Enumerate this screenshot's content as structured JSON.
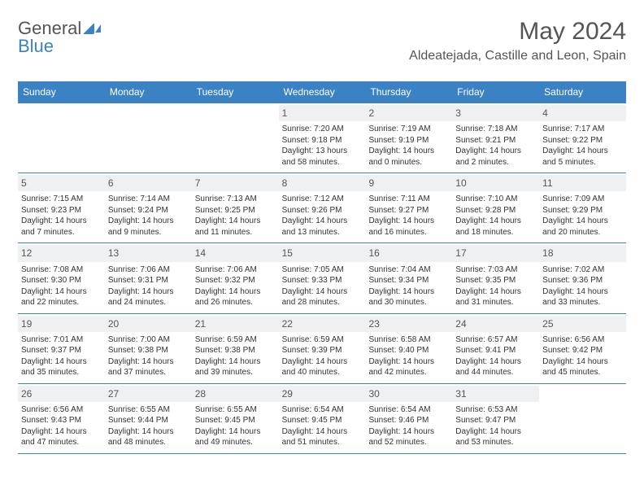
{
  "brand": {
    "part1": "General",
    "part2": "Blue"
  },
  "title": "May 2024",
  "location": "Aldeatejada, Castille and Leon, Spain",
  "colors": {
    "accent": "#3b82c4",
    "daynum_bg": "#eef0f2"
  },
  "daysOfWeek": [
    "Sunday",
    "Monday",
    "Tuesday",
    "Wednesday",
    "Thursday",
    "Friday",
    "Saturday"
  ],
  "weeks": [
    [
      null,
      null,
      null,
      {
        "num": "1",
        "sunrise": "Sunrise: 7:20 AM",
        "sunset": "Sunset: 9:18 PM",
        "daylight": "Daylight: 13 hours and 58 minutes."
      },
      {
        "num": "2",
        "sunrise": "Sunrise: 7:19 AM",
        "sunset": "Sunset: 9:19 PM",
        "daylight": "Daylight: 14 hours and 0 minutes."
      },
      {
        "num": "3",
        "sunrise": "Sunrise: 7:18 AM",
        "sunset": "Sunset: 9:21 PM",
        "daylight": "Daylight: 14 hours and 2 minutes."
      },
      {
        "num": "4",
        "sunrise": "Sunrise: 7:17 AM",
        "sunset": "Sunset: 9:22 PM",
        "daylight": "Daylight: 14 hours and 5 minutes."
      }
    ],
    [
      {
        "num": "5",
        "sunrise": "Sunrise: 7:15 AM",
        "sunset": "Sunset: 9:23 PM",
        "daylight": "Daylight: 14 hours and 7 minutes."
      },
      {
        "num": "6",
        "sunrise": "Sunrise: 7:14 AM",
        "sunset": "Sunset: 9:24 PM",
        "daylight": "Daylight: 14 hours and 9 minutes."
      },
      {
        "num": "7",
        "sunrise": "Sunrise: 7:13 AM",
        "sunset": "Sunset: 9:25 PM",
        "daylight": "Daylight: 14 hours and 11 minutes."
      },
      {
        "num": "8",
        "sunrise": "Sunrise: 7:12 AM",
        "sunset": "Sunset: 9:26 PM",
        "daylight": "Daylight: 14 hours and 13 minutes."
      },
      {
        "num": "9",
        "sunrise": "Sunrise: 7:11 AM",
        "sunset": "Sunset: 9:27 PM",
        "daylight": "Daylight: 14 hours and 16 minutes."
      },
      {
        "num": "10",
        "sunrise": "Sunrise: 7:10 AM",
        "sunset": "Sunset: 9:28 PM",
        "daylight": "Daylight: 14 hours and 18 minutes."
      },
      {
        "num": "11",
        "sunrise": "Sunrise: 7:09 AM",
        "sunset": "Sunset: 9:29 PM",
        "daylight": "Daylight: 14 hours and 20 minutes."
      }
    ],
    [
      {
        "num": "12",
        "sunrise": "Sunrise: 7:08 AM",
        "sunset": "Sunset: 9:30 PM",
        "daylight": "Daylight: 14 hours and 22 minutes."
      },
      {
        "num": "13",
        "sunrise": "Sunrise: 7:06 AM",
        "sunset": "Sunset: 9:31 PM",
        "daylight": "Daylight: 14 hours and 24 minutes."
      },
      {
        "num": "14",
        "sunrise": "Sunrise: 7:06 AM",
        "sunset": "Sunset: 9:32 PM",
        "daylight": "Daylight: 14 hours and 26 minutes."
      },
      {
        "num": "15",
        "sunrise": "Sunrise: 7:05 AM",
        "sunset": "Sunset: 9:33 PM",
        "daylight": "Daylight: 14 hours and 28 minutes."
      },
      {
        "num": "16",
        "sunrise": "Sunrise: 7:04 AM",
        "sunset": "Sunset: 9:34 PM",
        "daylight": "Daylight: 14 hours and 30 minutes."
      },
      {
        "num": "17",
        "sunrise": "Sunrise: 7:03 AM",
        "sunset": "Sunset: 9:35 PM",
        "daylight": "Daylight: 14 hours and 31 minutes."
      },
      {
        "num": "18",
        "sunrise": "Sunrise: 7:02 AM",
        "sunset": "Sunset: 9:36 PM",
        "daylight": "Daylight: 14 hours and 33 minutes."
      }
    ],
    [
      {
        "num": "19",
        "sunrise": "Sunrise: 7:01 AM",
        "sunset": "Sunset: 9:37 PM",
        "daylight": "Daylight: 14 hours and 35 minutes."
      },
      {
        "num": "20",
        "sunrise": "Sunrise: 7:00 AM",
        "sunset": "Sunset: 9:38 PM",
        "daylight": "Daylight: 14 hours and 37 minutes."
      },
      {
        "num": "21",
        "sunrise": "Sunrise: 6:59 AM",
        "sunset": "Sunset: 9:38 PM",
        "daylight": "Daylight: 14 hours and 39 minutes."
      },
      {
        "num": "22",
        "sunrise": "Sunrise: 6:59 AM",
        "sunset": "Sunset: 9:39 PM",
        "daylight": "Daylight: 14 hours and 40 minutes."
      },
      {
        "num": "23",
        "sunrise": "Sunrise: 6:58 AM",
        "sunset": "Sunset: 9:40 PM",
        "daylight": "Daylight: 14 hours and 42 minutes."
      },
      {
        "num": "24",
        "sunrise": "Sunrise: 6:57 AM",
        "sunset": "Sunset: 9:41 PM",
        "daylight": "Daylight: 14 hours and 44 minutes."
      },
      {
        "num": "25",
        "sunrise": "Sunrise: 6:56 AM",
        "sunset": "Sunset: 9:42 PM",
        "daylight": "Daylight: 14 hours and 45 minutes."
      }
    ],
    [
      {
        "num": "26",
        "sunrise": "Sunrise: 6:56 AM",
        "sunset": "Sunset: 9:43 PM",
        "daylight": "Daylight: 14 hours and 47 minutes."
      },
      {
        "num": "27",
        "sunrise": "Sunrise: 6:55 AM",
        "sunset": "Sunset: 9:44 PM",
        "daylight": "Daylight: 14 hours and 48 minutes."
      },
      {
        "num": "28",
        "sunrise": "Sunrise: 6:55 AM",
        "sunset": "Sunset: 9:45 PM",
        "daylight": "Daylight: 14 hours and 49 minutes."
      },
      {
        "num": "29",
        "sunrise": "Sunrise: 6:54 AM",
        "sunset": "Sunset: 9:45 PM",
        "daylight": "Daylight: 14 hours and 51 minutes."
      },
      {
        "num": "30",
        "sunrise": "Sunrise: 6:54 AM",
        "sunset": "Sunset: 9:46 PM",
        "daylight": "Daylight: 14 hours and 52 minutes."
      },
      {
        "num": "31",
        "sunrise": "Sunrise: 6:53 AM",
        "sunset": "Sunset: 9:47 PM",
        "daylight": "Daylight: 14 hours and 53 minutes."
      },
      null
    ]
  ]
}
